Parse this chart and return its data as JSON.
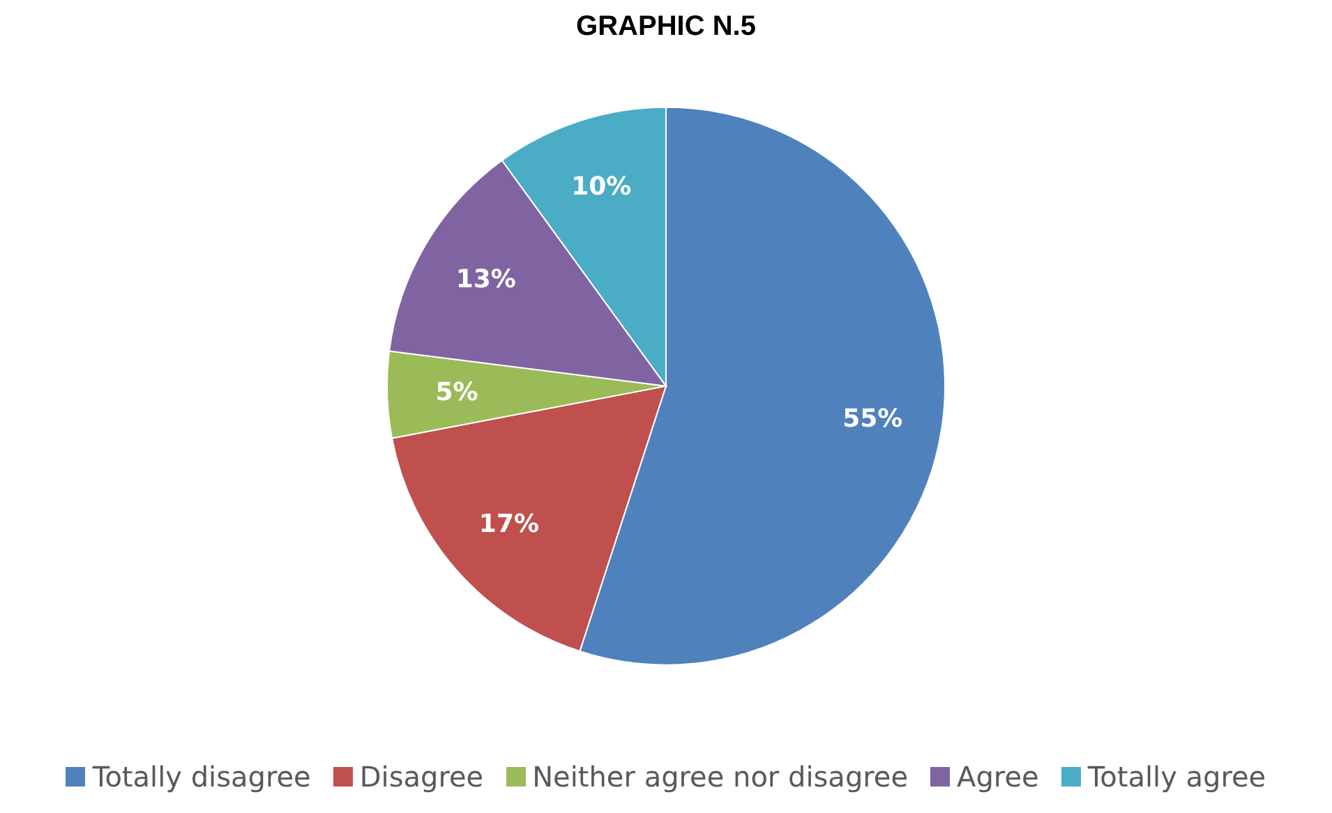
{
  "chart_data": {
    "type": "pie",
    "title": "GRAPHIC N.5",
    "categories": [
      "Totally disagree",
      "Disagree",
      "Neither agree nor disagree",
      "Agree",
      "Totally agree"
    ],
    "values": [
      55,
      17,
      5,
      13,
      10
    ],
    "colors": [
      "#4f81bd",
      "#c0504d",
      "#9bbb59",
      "#8064a2",
      "#4bacc6"
    ],
    "value_labels": [
      "55%",
      "17%",
      "5%",
      "13%",
      "10%"
    ],
    "legend": "bottom"
  }
}
